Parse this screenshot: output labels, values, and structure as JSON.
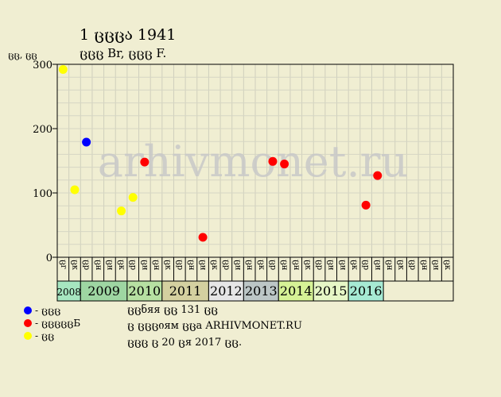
{
  "header": {
    "title": "1 ცცცა 1941",
    "subtitle": "ცცც Br, ცცც F.",
    "unit_label": "ცც, ცც"
  },
  "watermark": "arhivmonet.ru",
  "colors": {
    "background": "#f0eed2",
    "blue": "#0000ff",
    "red": "#ff0000",
    "yellow": "#ffff00",
    "grid": "#c8c8b4"
  },
  "legend": [
    {
      "label": "- ცცც",
      "color": "#0000ff"
    },
    {
      "label": "- ცცცცცБ",
      "color": "#ff0000"
    },
    {
      "label": "- ცც",
      "color": "#ffff00"
    }
  ],
  "info": {
    "line1": "ცცნяя ცც 131 ცც",
    "line2": "ც ცცციям ცცa ARHIVMONET.RU",
    "line3": "ცცც ც 20 ცя 2017 ცც."
  },
  "chart_data": {
    "type": "scatter",
    "ylim": [
      0,
      300
    ],
    "yticks": [
      0,
      100,
      200,
      300
    ],
    "quarter_labels": [
      "ცг",
      "ცк",
      "ცр",
      "ცн",
      "ცн",
      "ცк",
      "ცр",
      "ცн",
      "ცн",
      "ცк",
      "ცр",
      "ცн",
      "ცн",
      "ცк",
      "ცр",
      "ცн",
      "ცн",
      "ცк",
      "ცр",
      "ცн",
      "ცн",
      "ცк",
      "ცр",
      "ცн",
      "ცн",
      "ცк",
      "ცр",
      "ცн",
      "ცн",
      "ცк",
      "ცр",
      "ცн",
      "ცн",
      "ცк"
    ],
    "years": [
      {
        "label": "2008",
        "start": 0,
        "span": 2,
        "color": "#a6e6c0"
      },
      {
        "label": "2009",
        "start": 2,
        "span": 4,
        "color": "#9ed6a2"
      },
      {
        "label": "2010",
        "start": 6,
        "span": 3,
        "color": "#b6e0a2"
      },
      {
        "label": "2011",
        "start": 9,
        "span": 4,
        "color": "#d4d0a0"
      },
      {
        "label": "2012",
        "start": 13,
        "span": 3,
        "color": "#e6e6e6"
      },
      {
        "label": "2013",
        "start": 16,
        "span": 3,
        "color": "#bcc6c6"
      },
      {
        "label": "2014",
        "start": 19,
        "span": 3,
        "color": "#d6f296"
      },
      {
        "label": "2015",
        "start": 22,
        "span": 3,
        "color": "#e6f6c6"
      },
      {
        "label": "2016",
        "start": 25,
        "span": 3,
        "color": "#a6ead4"
      }
    ],
    "series": [
      {
        "color": "#ffff00",
        "points": [
          {
            "x": 0,
            "y": 292
          },
          {
            "x": 1,
            "y": 105
          },
          {
            "x": 5,
            "y": 72
          },
          {
            "x": 6,
            "y": 93
          }
        ]
      },
      {
        "color": "#0000ff",
        "points": [
          {
            "x": 2,
            "y": 179
          }
        ]
      },
      {
        "color": "#ff0000",
        "points": [
          {
            "x": 7,
            "y": 148
          },
          {
            "x": 12,
            "y": 31
          },
          {
            "x": 18,
            "y": 149
          },
          {
            "x": 19,
            "y": 145
          },
          {
            "x": 26,
            "y": 81
          },
          {
            "x": 27,
            "y": 127
          }
        ]
      }
    ]
  }
}
